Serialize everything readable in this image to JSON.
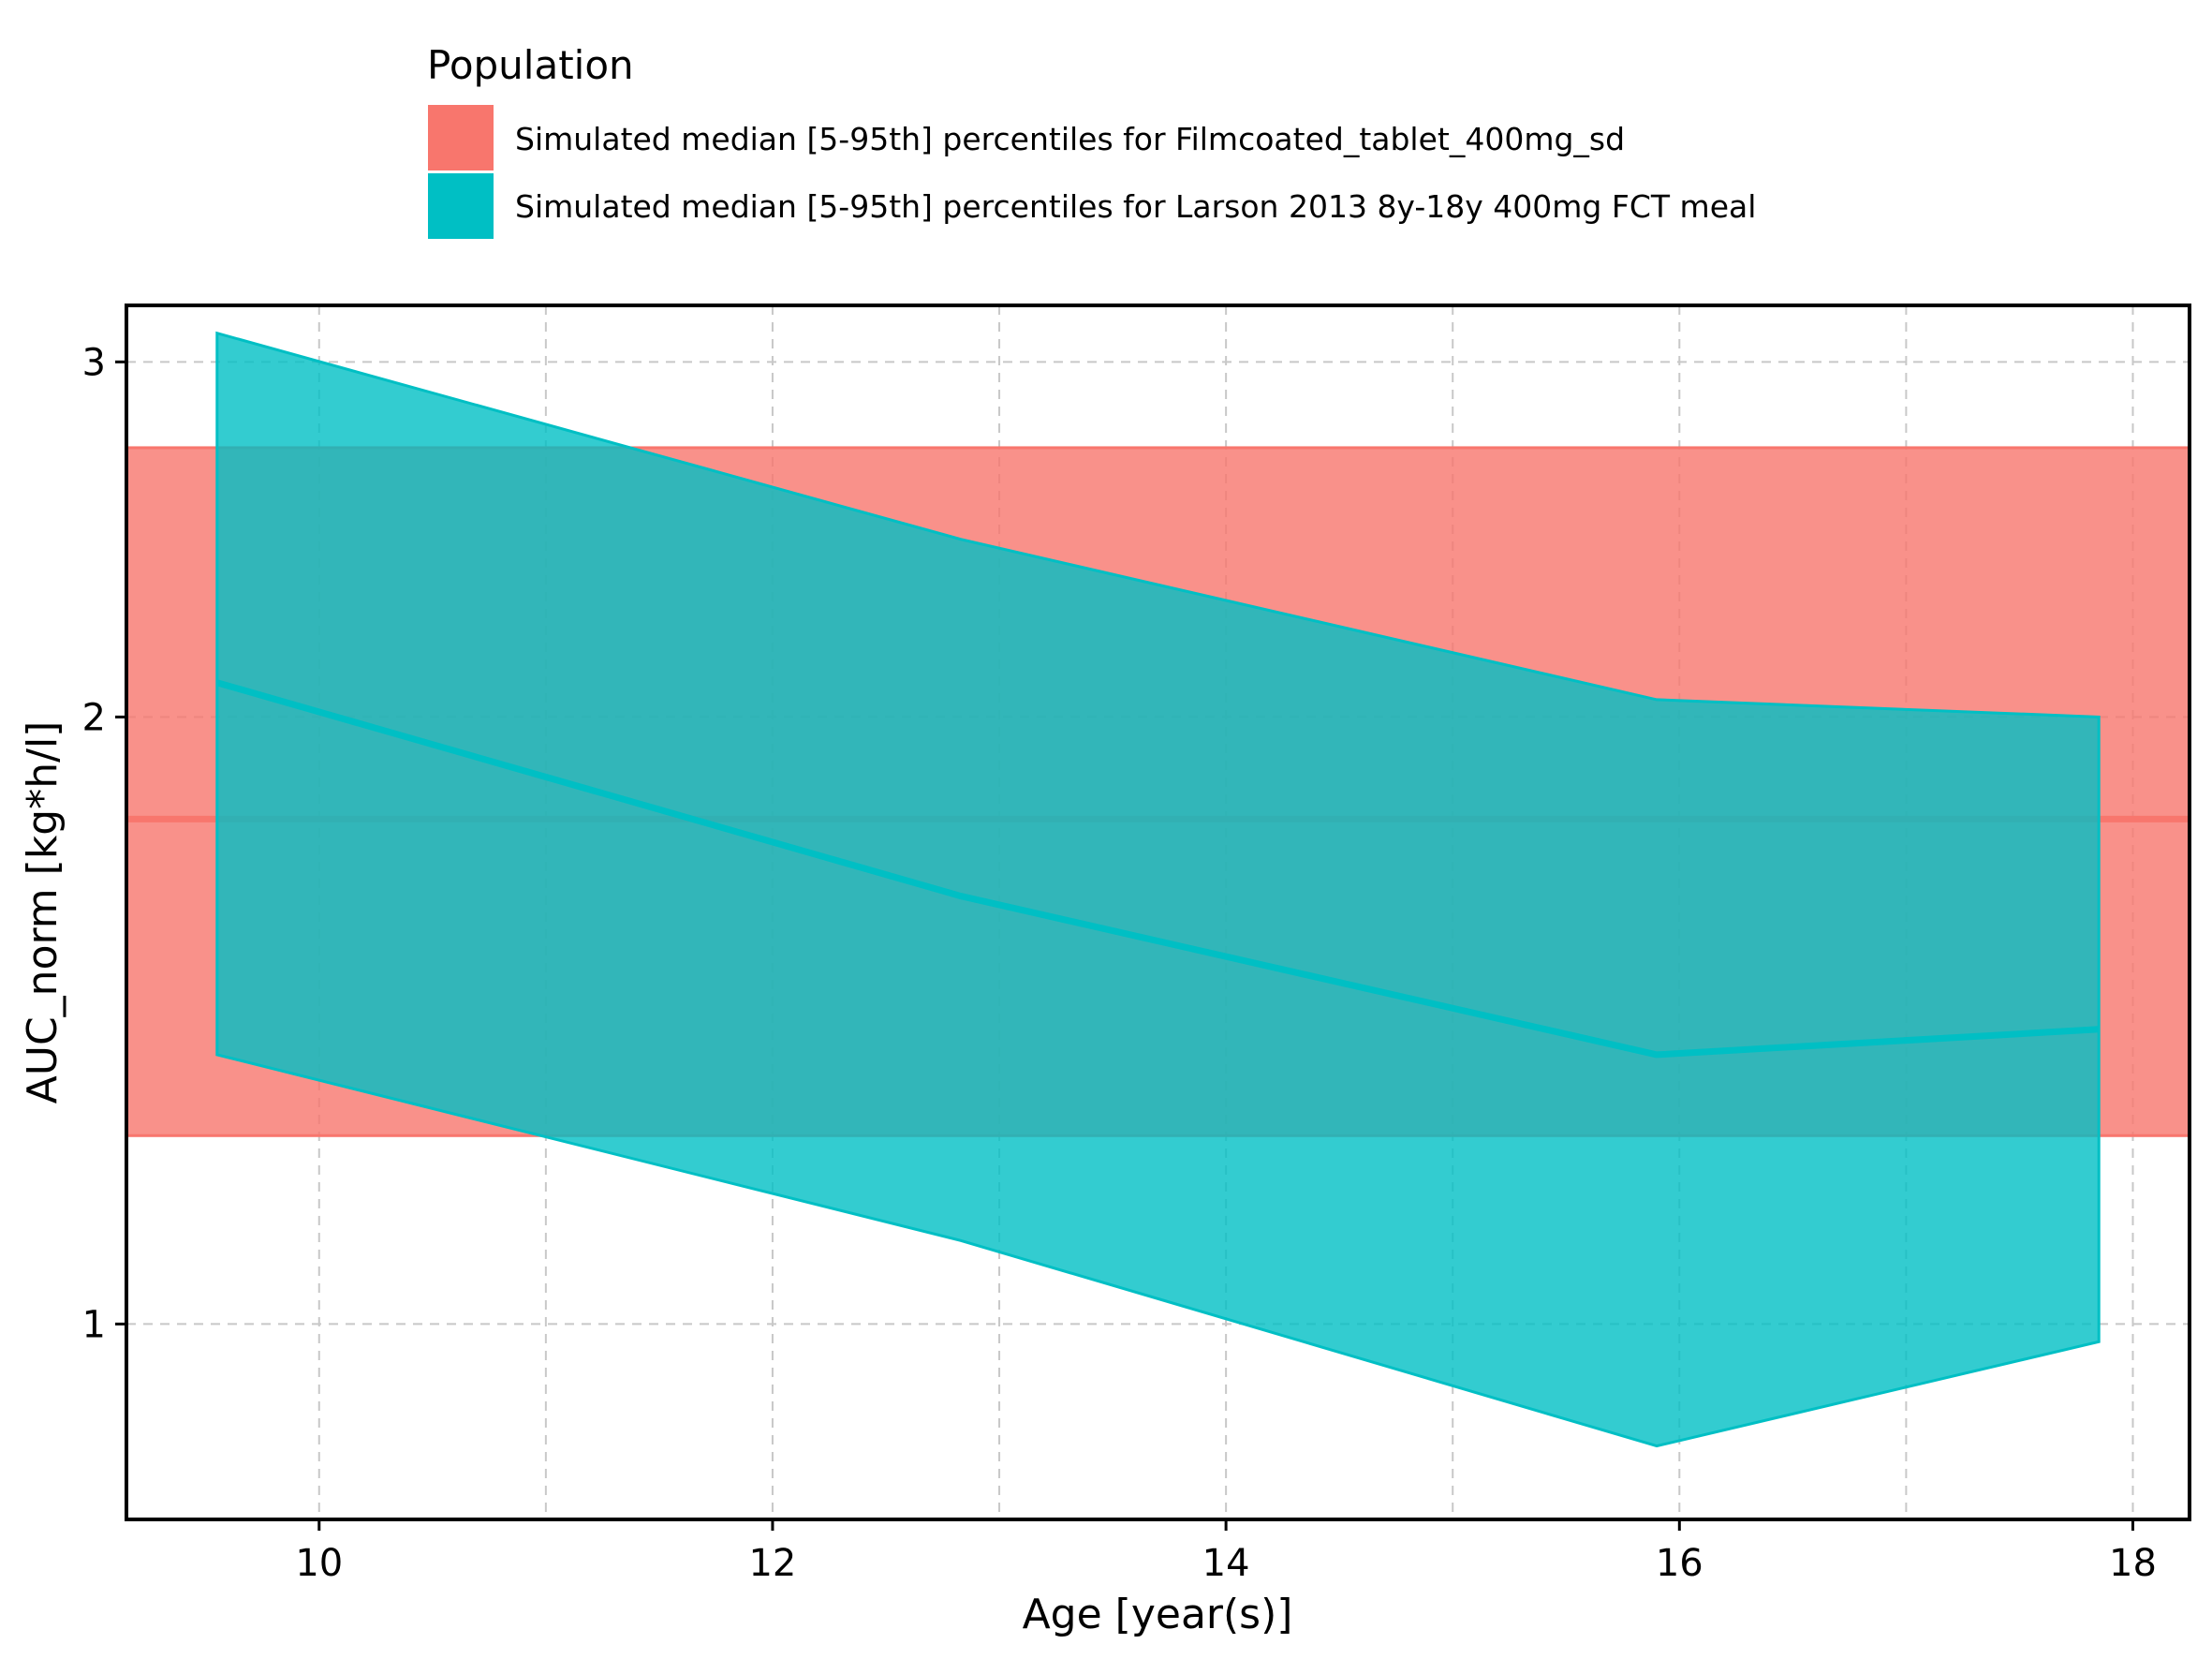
{
  "chart_data": {
    "type": "area",
    "xlabel": "Age [year(s)]",
    "ylabel": "AUC_norm [kg*h/l]",
    "xlim": [
      9.15,
      18.25
    ],
    "ylim": [
      0.8,
      3.2
    ],
    "y_scale": "log",
    "x_ticks": [
      10,
      12,
      14,
      16,
      18
    ],
    "x_tick_labels": [
      "10",
      "12",
      "14",
      "16",
      "18"
    ],
    "y_ticks": [
      1,
      2,
      3
    ],
    "y_tick_labels": [
      "1",
      "2",
      "3"
    ],
    "grid": true,
    "legend": {
      "title": "Population",
      "position": "top"
    },
    "series": [
      {
        "name": "Simulated median [5-95th] percentiles for Filmcoated_tablet_400mg_sd",
        "color": "#F8766D",
        "kind": "horizontal-band",
        "median": 1.78,
        "lower": 1.24,
        "upper": 2.72
      },
      {
        "name": "Simulated median [5-95th] percentiles for Larson 2013 8y-18y 400mg FCT meal",
        "color": "#00BFC4",
        "kind": "ribbon",
        "x": [
          9.55,
          12.83,
          15.9,
          17.85
        ],
        "median": [
          2.08,
          1.63,
          1.36,
          1.4
        ],
        "lower": [
          1.36,
          1.1,
          0.87,
          0.98
        ],
        "upper": [
          3.1,
          2.45,
          2.04,
          2.0
        ]
      }
    ]
  }
}
